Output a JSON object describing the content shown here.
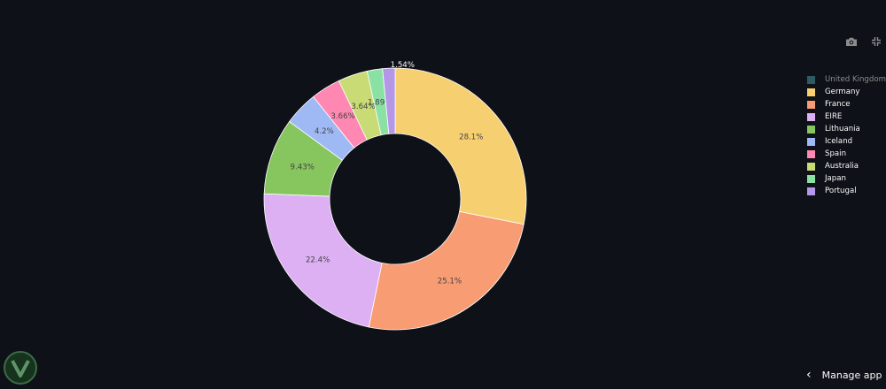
{
  "chart_data": {
    "type": "pie",
    "hole": 0.5,
    "title": "",
    "legend_position": "right",
    "slices": [
      {
        "label": "United Kingdom",
        "value": 0.0,
        "display": "",
        "color": "#2f5a63",
        "legend_dim": true
      },
      {
        "label": "Germany",
        "value": 28.1,
        "display": "28.1%",
        "color": "#f6cf71"
      },
      {
        "label": "France",
        "value": 25.1,
        "display": "25.1%",
        "color": "#f89c74"
      },
      {
        "label": "EIRE",
        "value": 22.4,
        "display": "22.4%",
        "color": "#dcb0f2"
      },
      {
        "label": "Lithuania",
        "value": 9.43,
        "display": "9.43%",
        "color": "#87c55f"
      },
      {
        "label": "Iceland",
        "value": 4.2,
        "display": "4.2%",
        "color": "#9eb9f3"
      },
      {
        "label": "Spain",
        "value": 3.66,
        "display": "3.66%",
        "color": "#fe88b1"
      },
      {
        "label": "Australia",
        "value": 3.64,
        "display": "3.64%",
        "color": "#c9db74"
      },
      {
        "label": "Japan",
        "value": 1.89,
        "display": "1.89%",
        "color": "#8be0a4"
      },
      {
        "label": "Portugal",
        "value": 1.54,
        "display": "1.54%",
        "color": "#b497e7",
        "label_outside": true
      }
    ]
  },
  "toolbar": {
    "camera_icon": "camera-icon",
    "collapse_icon": "collapse-icon"
  },
  "footer": {
    "manage_app_label": "Manage app",
    "chevron": "‹"
  },
  "colors": {
    "background": "#0e1117",
    "text": "#fafafa",
    "inside_label": "#444444",
    "icon": "#8c8c8c"
  }
}
